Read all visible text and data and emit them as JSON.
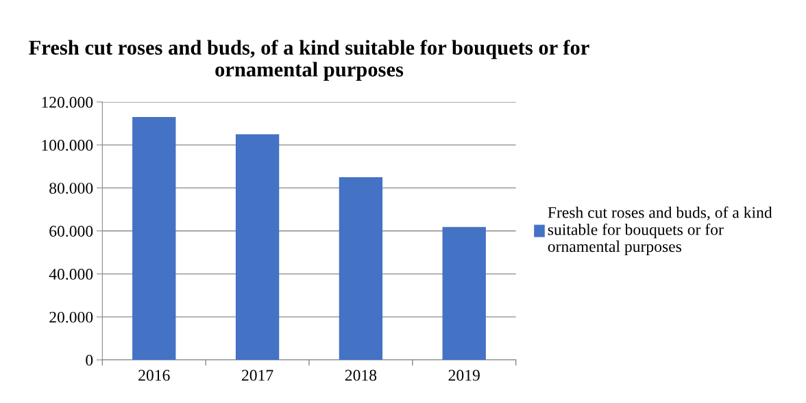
{
  "chart_data": {
    "type": "bar",
    "title": "Fresh cut roses and buds, of a kind suitable for bouquets or for ornamental purposes",
    "categories": [
      "2016",
      "2017",
      "2018",
      "2019"
    ],
    "series": [
      {
        "name": "Fresh cut roses and buds, of a kind suitable for bouquets or for ornamental purposes",
        "color": "#4472c4",
        "values": [
          113000,
          105000,
          85000,
          61800
        ]
      }
    ],
    "ylim": [
      0,
      120000
    ],
    "yticks": [
      {
        "value": 0,
        "label": "0"
      },
      {
        "value": 20000,
        "label": "20.000"
      },
      {
        "value": 40000,
        "label": "40.000"
      },
      {
        "value": 60000,
        "label": "60.000"
      },
      {
        "value": 80000,
        "label": "80.000"
      },
      {
        "value": 100000,
        "label": "100.000"
      },
      {
        "value": 120000,
        "label": "120.000"
      }
    ],
    "grid": "y",
    "legend": "right"
  }
}
